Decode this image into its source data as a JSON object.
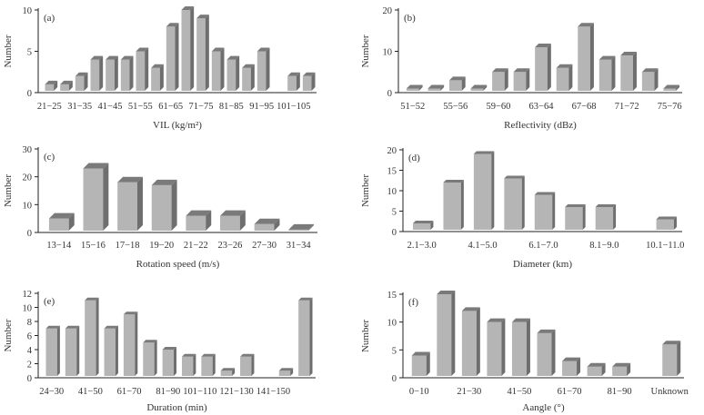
{
  "chart_data": [
    {
      "type": "bar",
      "panel": "(a)",
      "xlabel": "VIL (kg/m²)",
      "ylabel": "Number",
      "ylim": [
        0,
        10
      ],
      "yticks": [
        0,
        5,
        10
      ],
      "values": [
        1,
        1,
        2,
        4,
        4,
        4,
        5,
        3,
        8,
        10,
        9,
        5,
        4,
        3,
        5,
        0,
        2,
        2
      ],
      "tick_labels": [
        "21−25",
        null,
        "31−35",
        null,
        "41−45",
        null,
        "51−55",
        null,
        "61−65",
        null,
        "71−75",
        null,
        "81−85",
        null,
        "91−95",
        null,
        "101−105",
        null
      ]
    },
    {
      "type": "bar",
      "panel": "(b)",
      "xlabel": "Reflectivity (dBz)",
      "ylabel": "Number",
      "ylim": [
        0,
        20
      ],
      "yticks": [
        0,
        10,
        20
      ],
      "values": [
        1,
        1,
        3,
        1,
        5,
        5,
        11,
        6,
        16,
        8,
        9,
        5,
        1
      ],
      "tick_labels": [
        "51−52",
        null,
        "55−56",
        null,
        "59−60",
        null,
        "63−64",
        null,
        "67−68",
        null,
        "71−72",
        null,
        "75−76"
      ]
    },
    {
      "type": "bar",
      "panel": "(c)",
      "xlabel": "Rotation speed (m/s)",
      "ylabel": "Number",
      "ylim": [
        0,
        30
      ],
      "yticks": [
        0,
        10,
        20,
        30
      ],
      "values": [
        5,
        23,
        18,
        17,
        6,
        6,
        3,
        1
      ],
      "tick_labels": [
        "13−14",
        "15−16",
        "17−18",
        "19−20",
        "21−22",
        "23−26",
        "27−30",
        "31−34"
      ]
    },
    {
      "type": "bar",
      "panel": "(d)",
      "xlabel": "Diameter (km)",
      "ylabel": "Number",
      "ylim": [
        0,
        20
      ],
      "yticks": [
        0,
        5,
        10,
        15,
        20
      ],
      "values": [
        2,
        12,
        19,
        13,
        9,
        6,
        6,
        0,
        3
      ],
      "tick_labels": [
        "2.1−3.0",
        null,
        "4.1−5.0",
        null,
        "6.1−7.0",
        null,
        "8.1−9.0",
        null,
        "10.1−11.0"
      ]
    },
    {
      "type": "bar",
      "panel": "(e)",
      "xlabel": "Duration (min)",
      "ylabel": "Number",
      "ylim": [
        0,
        12
      ],
      "yticks": [
        0,
        2,
        4,
        6,
        8,
        10,
        12
      ],
      "values": [
        7,
        7,
        11,
        7,
        9,
        5,
        4,
        3,
        3,
        1,
        3,
        0,
        1,
        11
      ],
      "tick_labels": [
        "24−30",
        null,
        "41−50",
        null,
        "61−70",
        null,
        "81−90",
        "101−110",
        null,
        "121−130",
        null,
        "141−150",
        null,
        null
      ]
    },
    {
      "type": "bar",
      "panel": "(f)",
      "xlabel": "Aangle (°)",
      "ylabel": "Number",
      "ylim": [
        0,
        15
      ],
      "yticks": [
        0,
        5,
        10,
        15
      ],
      "values": [
        4,
        15,
        12,
        10,
        10,
        8,
        3,
        2,
        2,
        0,
        6
      ],
      "tick_labels": [
        "0−10",
        null,
        "21−30",
        null,
        "41−50",
        null,
        "61−70",
        null,
        "81−90",
        null,
        "Unknown"
      ]
    }
  ],
  "colors": {
    "bar_front": "#b5b5b5",
    "bar_side": "#6e6e6e",
    "bar_top": "#7a7a7a",
    "axis": "#222222"
  }
}
